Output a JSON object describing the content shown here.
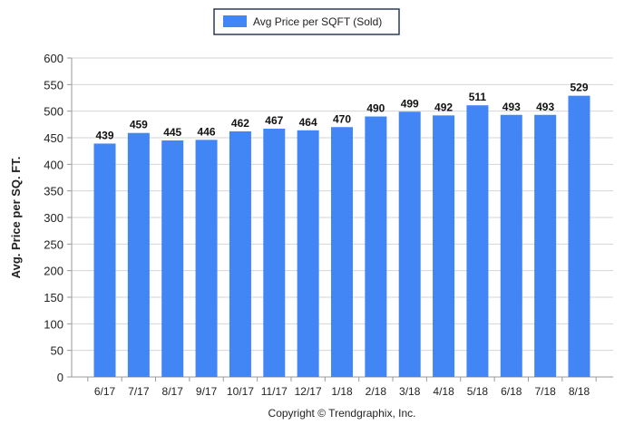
{
  "chart_data": {
    "type": "bar",
    "categories": [
      "6/17",
      "7/17",
      "8/17",
      "9/17",
      "10/17",
      "11/17",
      "12/17",
      "1/18",
      "2/18",
      "3/18",
      "4/18",
      "5/18",
      "6/18",
      "7/18",
      "8/18"
    ],
    "series": [
      {
        "name": "Avg Price per SQFT (Sold)",
        "values": [
          439,
          459,
          445,
          446,
          462,
          467,
          464,
          470,
          490,
          499,
          492,
          511,
          493,
          493,
          529
        ],
        "color": "#4285f4"
      }
    ],
    "data_labels": [
      "439",
      "459",
      "445",
      "446",
      "462",
      "467",
      "464",
      "470",
      "490",
      "499",
      "492",
      "511",
      "493",
      "493",
      "529"
    ],
    "ylabel": "Avg. Price per SQ. FT.",
    "ylim": [
      0,
      600
    ],
    "yticks": [
      "0",
      "50",
      "100",
      "150",
      "200",
      "250",
      "300",
      "350",
      "400",
      "450",
      "500",
      "550",
      "600"
    ],
    "grid": "horizontal",
    "legend_placement": "top-center"
  },
  "legend": {
    "label": "Avg Price per SQFT (Sold)"
  },
  "footer": {
    "copyright": "Copyright © Trendgraphix, Inc."
  }
}
